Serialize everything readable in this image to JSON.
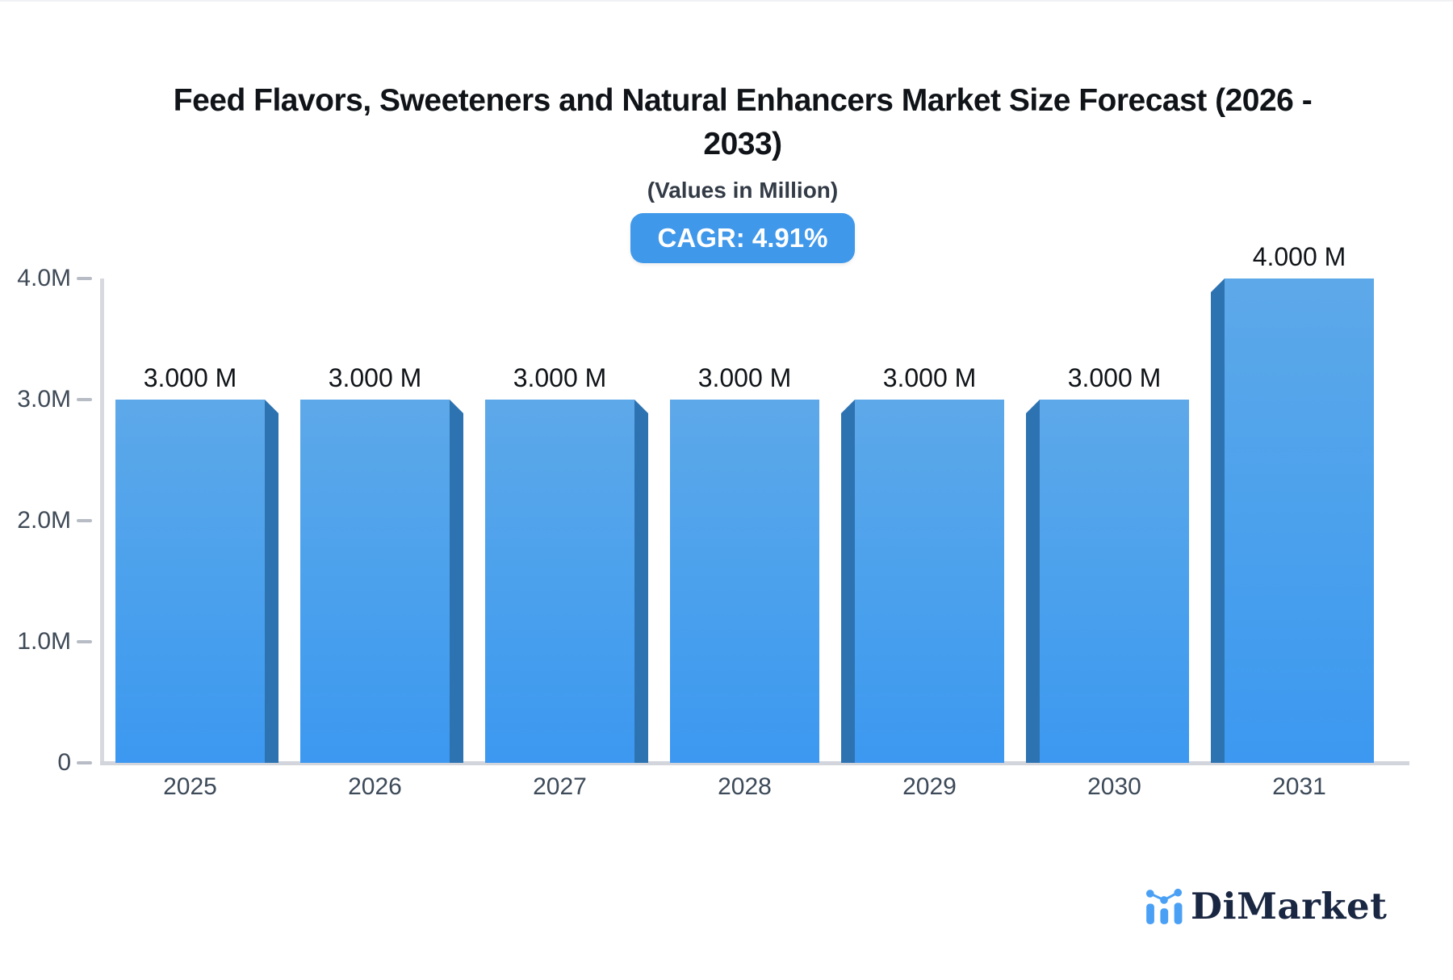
{
  "header": {
    "title": "Feed Flavors, Sweeteners and Natural Enhancers Market Size Forecast (2026 - 2033)",
    "title_lines": [
      "Feed Flavors, Sweeteners and Natural Enhancers Market Size Forecast (2026 -",
      "2033)"
    ],
    "subtitle": "(Values in Million)",
    "cagr_badge": "CAGR: 4.91%",
    "badge_color": "#3f98ea"
  },
  "chart_data": {
    "type": "bar",
    "title": "Feed Flavors, Sweeteners and Natural Enhancers Market Size Forecast (2026 - 2033)",
    "subtitle": "(Values in Million)",
    "categories": [
      "2025",
      "2026",
      "2027",
      "2028",
      "2029",
      "2030",
      "2031"
    ],
    "values": [
      3.0,
      3.0,
      3.0,
      3.0,
      3.0,
      3.0,
      4.0
    ],
    "bar_labels": [
      "3.000 M",
      "3.000 M",
      "3.000 M",
      "3.000 M",
      "3.000 M",
      "3.000 M",
      "4.000 M"
    ],
    "unit": "Million (M)",
    "y_ticks": [
      {
        "label": "0",
        "value": 0
      },
      {
        "label": "1.0M",
        "value": 1
      },
      {
        "label": "2.0M",
        "value": 2
      },
      {
        "label": "3.0M",
        "value": 3
      },
      {
        "label": "4.0M",
        "value": 4
      }
    ],
    "ylim": [
      0,
      4
    ],
    "xlabel": "",
    "ylabel": "",
    "grid": false,
    "legend": false,
    "bar_color_top": "#5da8e9",
    "bar_color_bottom": "#3c98f0",
    "bar_side_color": "#2e73b1",
    "effect": "3d-bevel-toward-center"
  },
  "footer": {
    "brand": "DiMarket",
    "logo_icon": "bar-chart-logo-icon",
    "brand_color": "#1a2742",
    "logo_blue": "#4aa0f5"
  }
}
